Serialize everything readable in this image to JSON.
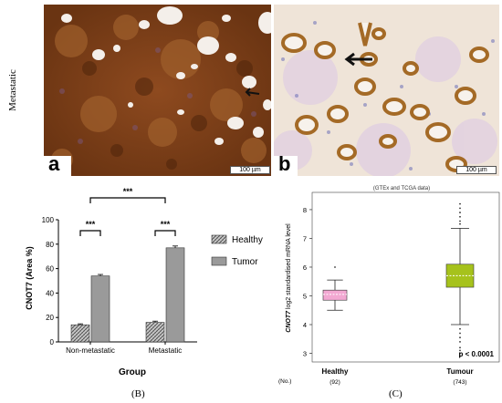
{
  "row_label": "Metastatic",
  "panel_a": {
    "letter": "a",
    "scale": "100 µm"
  },
  "panel_b_img": {
    "letter": "b",
    "scale": "100 µm"
  },
  "chart_data": [
    {
      "type": "bar",
      "categories": [
        "Non-metastatic",
        "Metastatic"
      ],
      "series": [
        {
          "name": "Healthy",
          "values": [
            14,
            16
          ],
          "errors": [
            0.8,
            1.0
          ],
          "color": "#9a9a9a",
          "pattern": "hatch"
        },
        {
          "name": "Tumor",
          "values": [
            54,
            77
          ],
          "errors": [
            1.2,
            1.5
          ],
          "color": "#9a9a9a",
          "pattern": "solid"
        }
      ],
      "xlabel": "Group",
      "ylabel": "CNOT7 (Area %)",
      "ylim": [
        0,
        100
      ],
      "yticks": [
        "0",
        "20",
        "40",
        "60",
        "80",
        "100"
      ],
      "significance": [
        {
          "label": "***",
          "between": "Non-metastatic Healthy vs Tumor"
        },
        {
          "label": "***",
          "between": "Metastatic Healthy vs Tumor"
        },
        {
          "label": "***",
          "between": "Non-metastatic vs Metastatic"
        }
      ],
      "caption": "(B)"
    },
    {
      "type": "box",
      "title": "(GTEx and TCGA data)",
      "categories": [
        "Healthy",
        "Tumour"
      ],
      "counts": [
        "(92)",
        "(743)"
      ],
      "count_label": "(No.)",
      "ylabel_italic": "CNOT7",
      "ylabel": " log2 standardised mRNA level",
      "ylim": [
        2.7,
        8.6
      ],
      "yticks": [
        "3",
        "4",
        "5",
        "6",
        "7",
        "8"
      ],
      "boxes": [
        {
          "name": "Healthy",
          "min": 4.5,
          "q1": 4.85,
          "median": 5.05,
          "q3": 5.2,
          "max": 5.55,
          "outliers": [
            6.0
          ],
          "color": "#f2a8d2"
        },
        {
          "name": "Tumour",
          "min": 4.0,
          "q1": 5.3,
          "median": 5.7,
          "q3": 6.1,
          "max": 7.35,
          "outliers": [
            8.2,
            8.05,
            7.9,
            7.75,
            7.6,
            7.5,
            3.85,
            3.7,
            3.55,
            3.4,
            3.2,
            3.1,
            3.0,
            2.9
          ],
          "color": "#a6c21c"
        }
      ],
      "pvalue": "p < 0.0001",
      "caption": "(C)"
    }
  ]
}
